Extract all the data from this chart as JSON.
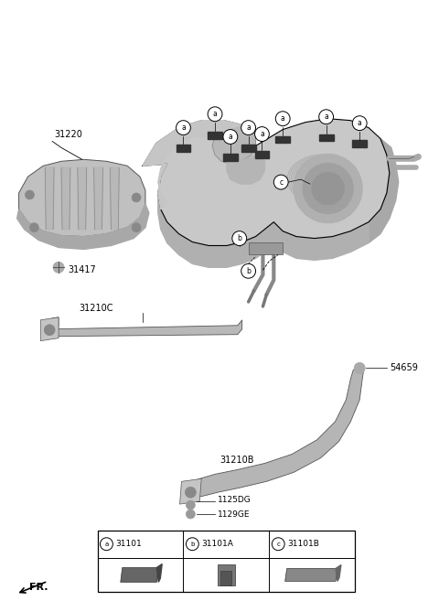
{
  "bg_color": "#ffffff",
  "parts": {
    "shield_label": "31220",
    "bolt_label": "31417",
    "strap_c_label": "31210C",
    "strap_b_label": "31210B",
    "nut_label": "54659",
    "bolt1_label": "1125DG",
    "bolt2_label": "1129GE"
  },
  "legend": {
    "a_code": "31101",
    "b_code": "31101A",
    "c_code": "31101B"
  }
}
